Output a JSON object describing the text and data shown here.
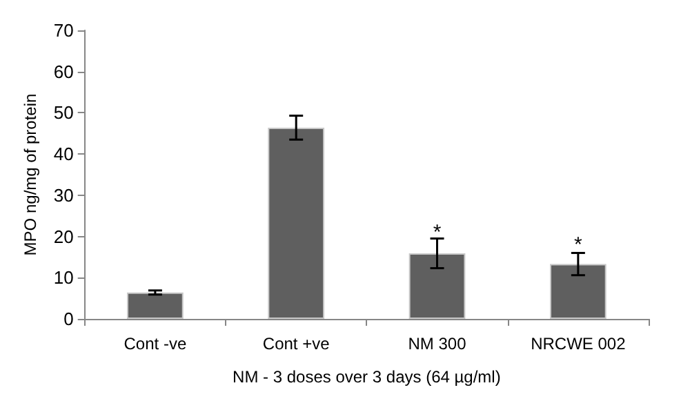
{
  "chart_data": {
    "type": "bar",
    "xlabel": "NM - 3 doses over 3 days (64 µg/ml)",
    "ylabel": "MPO ng/mg of protein",
    "categories": [
      "Cont -ve",
      "Cont +ve",
      "NM 300",
      "NRCWE 002"
    ],
    "values": [
      6.4,
      46.4,
      15.9,
      13.3
    ],
    "errors": [
      0.5,
      2.9,
      3.6,
      2.7
    ],
    "color": "#5f5f5f",
    "ylim": [
      0,
      70
    ],
    "yticks": [
      0,
      10,
      20,
      30,
      40,
      50,
      60,
      70
    ],
    "grid": false,
    "annotations": [
      {
        "text": "*",
        "x": "NM 300",
        "y": 20.5
      },
      {
        "text": "*",
        "x": "NRCWE 002",
        "y": 17.5
      }
    ]
  }
}
